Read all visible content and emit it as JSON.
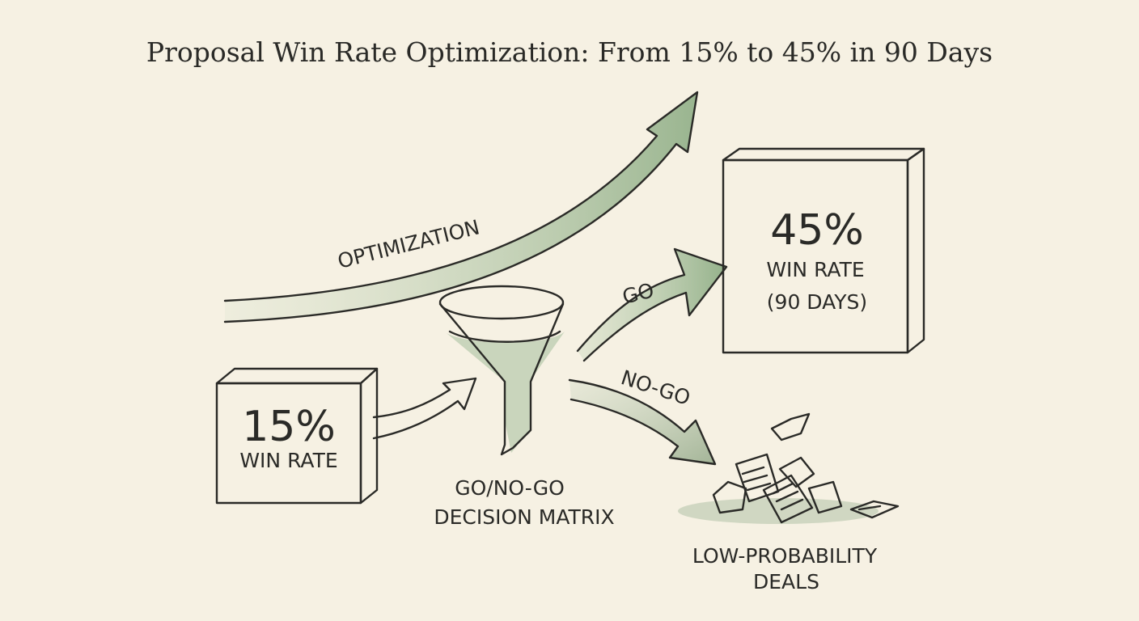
{
  "title": "Proposal Win Rate Optimization: From 15% to 45% in 90 Days",
  "optimization_label": "OPTIMIZATION",
  "start_box": {
    "value": "15%",
    "label": "WIN RATE"
  },
  "funnel": {
    "label_line1": "GO/NO-GO",
    "label_line2": "DECISION MATRIX"
  },
  "go_label": "GO",
  "nogo_label": "NO-GO",
  "result_box": {
    "value": "45%",
    "label": "WIN RATE",
    "sub": "(90 DAYS)"
  },
  "discard": {
    "label_line1": "LOW-PROBABILITY",
    "label_line2": "DEALS"
  },
  "colors": {
    "paper": "#f6f1e3",
    "ink": "#2a2a27",
    "wash_green": "#9bb592",
    "light_green": "#c9d8bd"
  }
}
